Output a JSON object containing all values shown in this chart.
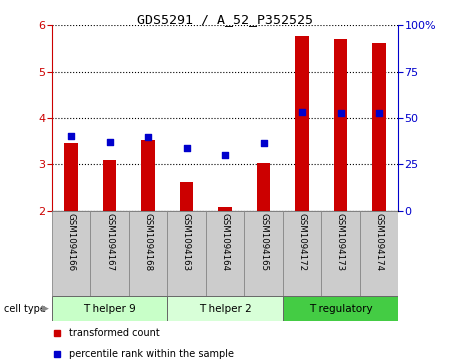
{
  "title": "GDS5291 / A_52_P352525",
  "samples": [
    "GSM1094166",
    "GSM1094167",
    "GSM1094168",
    "GSM1094163",
    "GSM1094164",
    "GSM1094165",
    "GSM1094172",
    "GSM1094173",
    "GSM1094174"
  ],
  "transformed_count": [
    3.45,
    3.1,
    3.52,
    2.62,
    2.07,
    3.02,
    5.78,
    5.7,
    5.63
  ],
  "percentile_rank_left": [
    3.6,
    3.48,
    3.58,
    3.35,
    3.2,
    3.46,
    4.13,
    4.1,
    4.1
  ],
  "ylim_left": [
    2,
    6
  ],
  "ylim_right": [
    0,
    100
  ],
  "yticks_left": [
    2,
    3,
    4,
    5,
    6
  ],
  "yticks_right": [
    0,
    25,
    50,
    75,
    100
  ],
  "ytick_labels_right": [
    "0",
    "25",
    "50",
    "75",
    "100%"
  ],
  "bar_color": "#cc0000",
  "dot_color": "#0000cc",
  "bar_bottom": 2,
  "bar_width": 0.35,
  "cell_types": [
    {
      "label": "T helper 9",
      "start": 0,
      "end": 3,
      "color": "#c8ffc8"
    },
    {
      "label": "T helper 2",
      "start": 3,
      "end": 6,
      "color": "#d8ffd8"
    },
    {
      "label": "T regulatory",
      "start": 6,
      "end": 9,
      "color": "#44cc44"
    }
  ],
  "legend_red_label": "transformed count",
  "legend_blue_label": "percentile rank within the sample",
  "cell_type_label": "cell type",
  "background_color": "#ffffff",
  "tick_color_left": "#cc0000",
  "tick_color_right": "#0000cc",
  "sample_box_color": "#cccccc",
  "sample_box_edge": "#888888"
}
